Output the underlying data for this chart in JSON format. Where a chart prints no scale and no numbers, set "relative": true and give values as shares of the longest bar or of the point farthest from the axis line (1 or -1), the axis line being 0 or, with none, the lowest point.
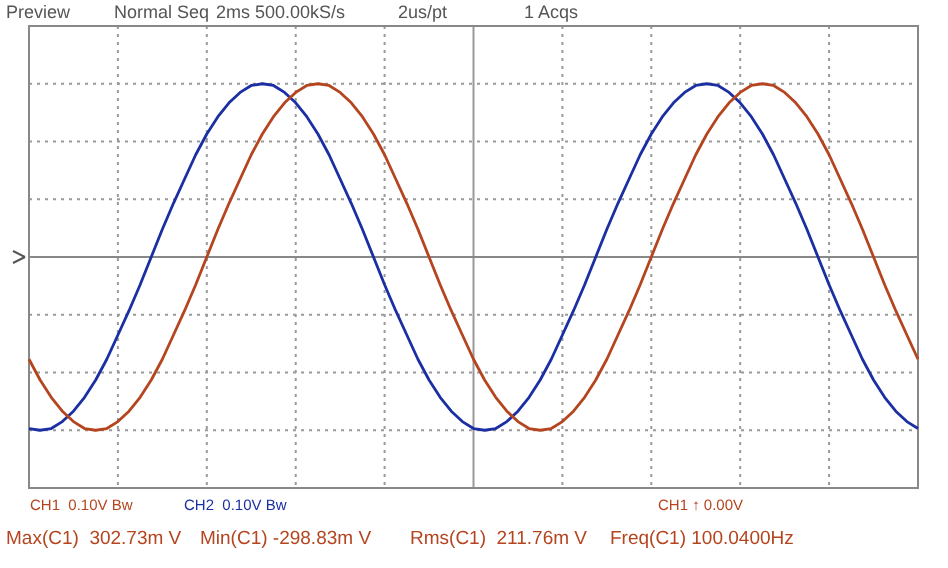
{
  "chart_data": {
    "type": "line",
    "annotations": [
      "Preview",
      "Normal Seq",
      "2ms 500.00kS/s",
      "2us/pt",
      "1 Acqs",
      "CH1  0.10V Bw",
      "CH2  0.10V Bw",
      "CH1 ↑ 0.00V",
      "Max(C1)  302.73m V",
      "Min(C1) -298.83m V",
      "Rms(C1)  211.76m V",
      "Freq(C1) 100.0400Hz"
    ],
    "categories": [
      null,
      null,
      null,
      null,
      null,
      null,
      null,
      null,
      null,
      null,
      null,
      null,
      null,
      null,
      null,
      null,
      null,
      null,
      null,
      null,
      null,
      null,
      null,
      null,
      null,
      null,
      null,
      null,
      null,
      null,
      null,
      null,
      null,
      null,
      null,
      null,
      null,
      null,
      null,
      null,
      null,
      null,
      null,
      null,
      null,
      null,
      null,
      null,
      null,
      null,
      null,
      null,
      null,
      null,
      null,
      null,
      null,
      null,
      null,
      null,
      null,
      null,
      null,
      null,
      null,
      null,
      null,
      null,
      null,
      null,
      null,
      null,
      null,
      null,
      null,
      null,
      null,
      null,
      null,
      null,
      null
    ],
    "relative": true,
    "series": [
      {
        "color": "#1b2fa3",
        "values": [
          -0.99,
          -1,
          -0.99,
          -0.95,
          -0.89,
          -0.81,
          -0.71,
          -0.59,
          -0.45,
          -0.31,
          -0.16,
          0,
          0.16,
          0.31,
          0.45,
          0.59,
          0.71,
          0.81,
          0.89,
          0.95,
          0.99,
          1,
          0.99,
          0.95,
          0.89,
          0.81,
          0.71,
          0.59,
          0.45,
          0.31,
          0.16,
          0,
          -0.16,
          -0.31,
          -0.45,
          -0.59,
          -0.71,
          -0.81,
          -0.89,
          -0.95,
          -0.99,
          -1,
          -0.99,
          -0.95,
          -0.89,
          -0.81,
          -0.71,
          -0.59,
          -0.45,
          -0.31,
          -0.16,
          0,
          0.16,
          0.31,
          0.45,
          0.59,
          0.71,
          0.81,
          0.89,
          0.95,
          0.99,
          1,
          0.99,
          0.95,
          0.89,
          0.81,
          0.71,
          0.59,
          0.45,
          0.31,
          0.16,
          0,
          -0.16,
          -0.31,
          -0.45,
          -0.59,
          -0.71,
          -0.81,
          -0.89,
          -0.95,
          -0.99
        ]
      },
      {
        "color": "#b4451f",
        "values": [
          -0.59,
          -0.71,
          -0.81,
          -0.89,
          -0.95,
          -0.99,
          -1,
          -0.99,
          -0.95,
          -0.89,
          -0.81,
          -0.71,
          -0.59,
          -0.45,
          -0.31,
          -0.16,
          0,
          0.16,
          0.31,
          0.45,
          0.59,
          0.71,
          0.81,
          0.89,
          0.95,
          0.99,
          1,
          0.99,
          0.95,
          0.89,
          0.81,
          0.71,
          0.59,
          0.45,
          0.31,
          0.16,
          0,
          -0.16,
          -0.31,
          -0.45,
          -0.59,
          -0.71,
          -0.81,
          -0.89,
          -0.95,
          -0.99,
          -1,
          -0.99,
          -0.95,
          -0.89,
          -0.81,
          -0.71,
          -0.59,
          -0.45,
          -0.31,
          -0.16,
          0,
          0.16,
          0.31,
          0.45,
          0.59,
          0.71,
          0.81,
          0.89,
          0.95,
          0.99,
          1,
          0.99,
          0.95,
          0.89,
          0.81,
          0.71,
          0.59,
          0.45,
          0.31,
          0.16,
          0,
          -0.16,
          -0.31,
          -0.45,
          -0.59
        ]
      }
    ],
    "grid": true,
    "line_style": "solid"
  }
}
